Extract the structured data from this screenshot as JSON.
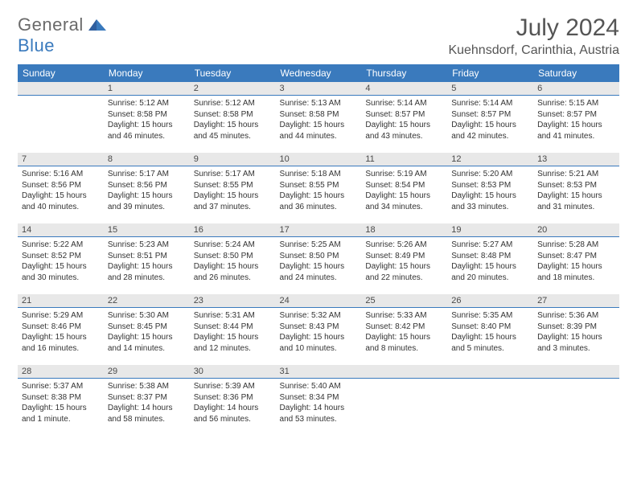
{
  "brand": {
    "general": "General",
    "blue": "Blue"
  },
  "title": "July 2024",
  "location": "Kuehnsdorf, Carinthia, Austria",
  "colors": {
    "header_bg": "#3a7abd",
    "header_text": "#ffffff",
    "daynum_bg": "#e8e8e8",
    "daynum_border": "#3a7abd",
    "text": "#333333",
    "brand_gray": "#6a6a6a",
    "brand_blue": "#3a7abd"
  },
  "weekdays": [
    "Sunday",
    "Monday",
    "Tuesday",
    "Wednesday",
    "Thursday",
    "Friday",
    "Saturday"
  ],
  "weeks": [
    [
      null,
      {
        "n": "1",
        "sr": "5:12 AM",
        "ss": "8:58 PM",
        "dl": "15 hours and 46 minutes."
      },
      {
        "n": "2",
        "sr": "5:12 AM",
        "ss": "8:58 PM",
        "dl": "15 hours and 45 minutes."
      },
      {
        "n": "3",
        "sr": "5:13 AM",
        "ss": "8:58 PM",
        "dl": "15 hours and 44 minutes."
      },
      {
        "n": "4",
        "sr": "5:14 AM",
        "ss": "8:57 PM",
        "dl": "15 hours and 43 minutes."
      },
      {
        "n": "5",
        "sr": "5:14 AM",
        "ss": "8:57 PM",
        "dl": "15 hours and 42 minutes."
      },
      {
        "n": "6",
        "sr": "5:15 AM",
        "ss": "8:57 PM",
        "dl": "15 hours and 41 minutes."
      }
    ],
    [
      {
        "n": "7",
        "sr": "5:16 AM",
        "ss": "8:56 PM",
        "dl": "15 hours and 40 minutes."
      },
      {
        "n": "8",
        "sr": "5:17 AM",
        "ss": "8:56 PM",
        "dl": "15 hours and 39 minutes."
      },
      {
        "n": "9",
        "sr": "5:17 AM",
        "ss": "8:55 PM",
        "dl": "15 hours and 37 minutes."
      },
      {
        "n": "10",
        "sr": "5:18 AM",
        "ss": "8:55 PM",
        "dl": "15 hours and 36 minutes."
      },
      {
        "n": "11",
        "sr": "5:19 AM",
        "ss": "8:54 PM",
        "dl": "15 hours and 34 minutes."
      },
      {
        "n": "12",
        "sr": "5:20 AM",
        "ss": "8:53 PM",
        "dl": "15 hours and 33 minutes."
      },
      {
        "n": "13",
        "sr": "5:21 AM",
        "ss": "8:53 PM",
        "dl": "15 hours and 31 minutes."
      }
    ],
    [
      {
        "n": "14",
        "sr": "5:22 AM",
        "ss": "8:52 PM",
        "dl": "15 hours and 30 minutes."
      },
      {
        "n": "15",
        "sr": "5:23 AM",
        "ss": "8:51 PM",
        "dl": "15 hours and 28 minutes."
      },
      {
        "n": "16",
        "sr": "5:24 AM",
        "ss": "8:50 PM",
        "dl": "15 hours and 26 minutes."
      },
      {
        "n": "17",
        "sr": "5:25 AM",
        "ss": "8:50 PM",
        "dl": "15 hours and 24 minutes."
      },
      {
        "n": "18",
        "sr": "5:26 AM",
        "ss": "8:49 PM",
        "dl": "15 hours and 22 minutes."
      },
      {
        "n": "19",
        "sr": "5:27 AM",
        "ss": "8:48 PM",
        "dl": "15 hours and 20 minutes."
      },
      {
        "n": "20",
        "sr": "5:28 AM",
        "ss": "8:47 PM",
        "dl": "15 hours and 18 minutes."
      }
    ],
    [
      {
        "n": "21",
        "sr": "5:29 AM",
        "ss": "8:46 PM",
        "dl": "15 hours and 16 minutes."
      },
      {
        "n": "22",
        "sr": "5:30 AM",
        "ss": "8:45 PM",
        "dl": "15 hours and 14 minutes."
      },
      {
        "n": "23",
        "sr": "5:31 AM",
        "ss": "8:44 PM",
        "dl": "15 hours and 12 minutes."
      },
      {
        "n": "24",
        "sr": "5:32 AM",
        "ss": "8:43 PM",
        "dl": "15 hours and 10 minutes."
      },
      {
        "n": "25",
        "sr": "5:33 AM",
        "ss": "8:42 PM",
        "dl": "15 hours and 8 minutes."
      },
      {
        "n": "26",
        "sr": "5:35 AM",
        "ss": "8:40 PM",
        "dl": "15 hours and 5 minutes."
      },
      {
        "n": "27",
        "sr": "5:36 AM",
        "ss": "8:39 PM",
        "dl": "15 hours and 3 minutes."
      }
    ],
    [
      {
        "n": "28",
        "sr": "5:37 AM",
        "ss": "8:38 PM",
        "dl": "15 hours and 1 minute."
      },
      {
        "n": "29",
        "sr": "5:38 AM",
        "ss": "8:37 PM",
        "dl": "14 hours and 58 minutes."
      },
      {
        "n": "30",
        "sr": "5:39 AM",
        "ss": "8:36 PM",
        "dl": "14 hours and 56 minutes."
      },
      {
        "n": "31",
        "sr": "5:40 AM",
        "ss": "8:34 PM",
        "dl": "14 hours and 53 minutes."
      },
      null,
      null,
      null
    ]
  ],
  "labels": {
    "sunrise": "Sunrise: ",
    "sunset": "Sunset: ",
    "daylight": "Daylight: "
  }
}
